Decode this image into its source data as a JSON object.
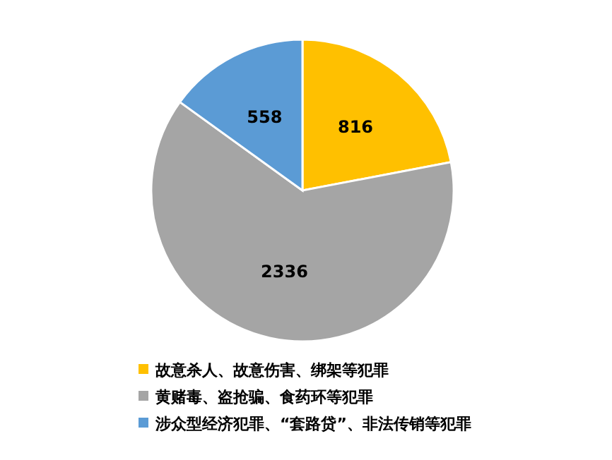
{
  "chart_data": {
    "type": "pie",
    "categories": [
      "故意杀人、故意伤害、绑架等犯罪",
      "黄赌毒、盗抢骗、食药环等犯罪",
      "涉众型经济犯罪、“套路贷”、非法传销等犯罪"
    ],
    "values": [
      816,
      2336,
      558
    ],
    "colors": [
      "#ffc000",
      "#a5a5a5",
      "#5b9bd5"
    ],
    "data_labels": true,
    "legend": "bottom"
  }
}
